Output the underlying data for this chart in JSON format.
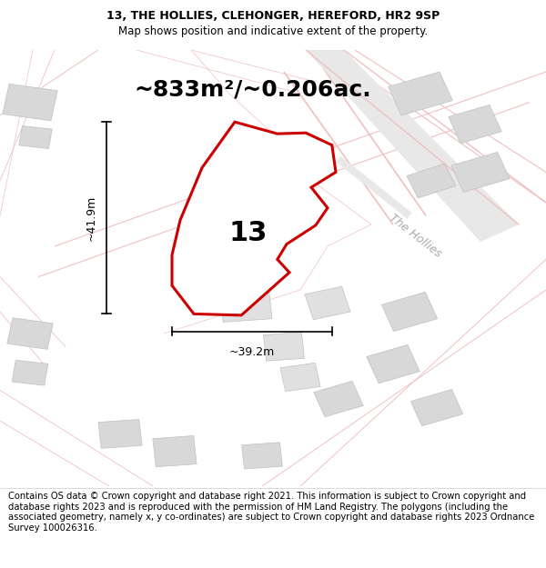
{
  "title_line1": "13, THE HOLLIES, CLEHONGER, HEREFORD, HR2 9SP",
  "title_line2": "Map shows position and indicative extent of the property.",
  "area_text": "~833m²/~0.206ac.",
  "label_number": "13",
  "dim_width": "~39.2m",
  "dim_height": "~41.9m",
  "street_label": "The Hollies",
  "footer_text": "Contains OS data © Crown copyright and database right 2021. This information is subject to Crown copyright and database rights 2023 and is reproduced with the permission of HM Land Registry. The polygons (including the associated geometry, namely x, y co-ordinates) are subject to Crown copyright and database rights 2023 Ordnance Survey 100026316.",
  "plot_color": "#cc0000",
  "title_fontsize": 9,
  "area_fontsize": 18,
  "footer_fontsize": 7.2,
  "map_bg": "#f8f8f8",
  "road_color": "#f0c0c0",
  "building_color": "#d8d8d8",
  "building_edge": "#c8c8c8"
}
